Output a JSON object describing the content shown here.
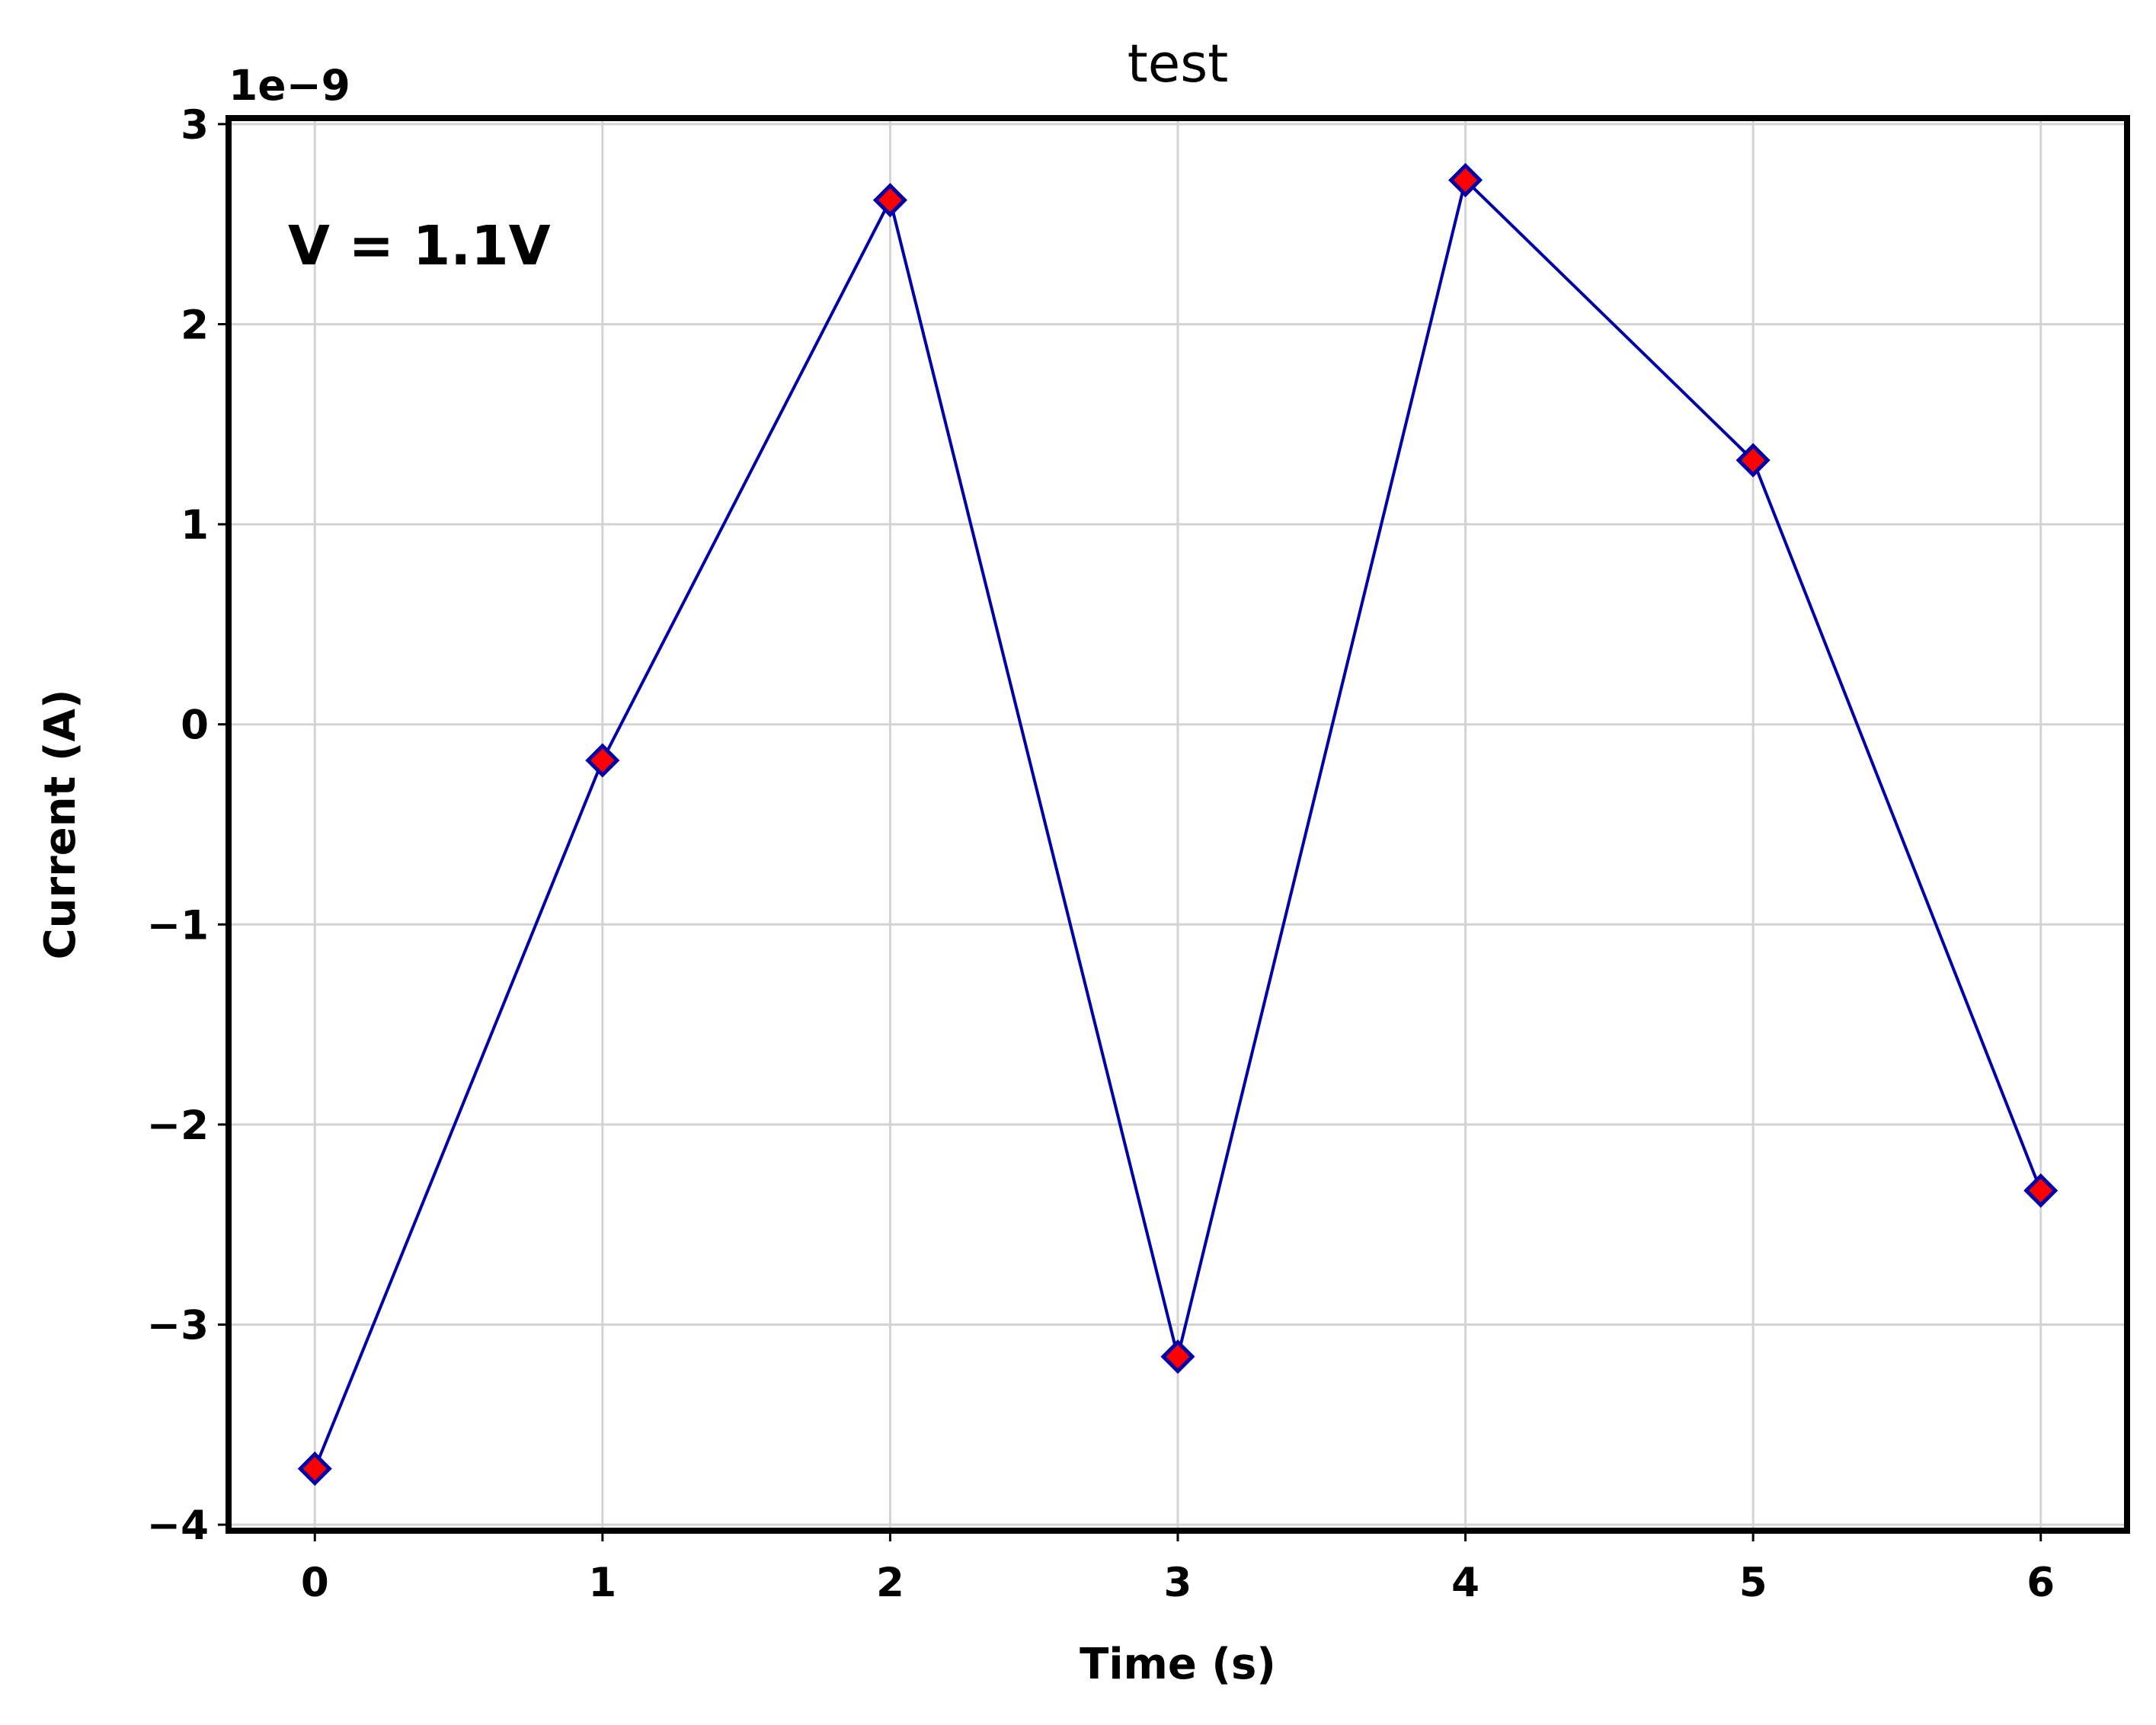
{
  "chart_data": {
    "type": "line",
    "title": "test",
    "xlabel": "Time (s)",
    "ylabel": "Current (A)",
    "y_offset_label": "1e−9",
    "annotation": "V = 1.1V",
    "xlim": [
      -0.3,
      6.3
    ],
    "ylim": [
      -4.03,
      3.03
    ],
    "x_ticks": [
      0,
      1,
      2,
      3,
      4,
      5,
      6
    ],
    "x_tick_labels": [
      "0",
      "1",
      "2",
      "3",
      "4",
      "5",
      "6"
    ],
    "y_ticks": [
      -4,
      -3,
      -2,
      -1,
      0,
      1,
      2,
      3
    ],
    "y_tick_labels": [
      "−4",
      "−3",
      "−2",
      "−1",
      "0",
      "1",
      "2",
      "3"
    ],
    "grid": true,
    "series": [
      {
        "x": [
          0,
          1,
          2,
          3,
          4,
          5,
          6
        ],
        "y": [
          -3.72,
          -0.18,
          2.62,
          -3.16,
          2.72,
          1.32,
          -2.33
        ],
        "line_color": "#0000aa",
        "marker": "diamond",
        "marker_fill": "#ff0000",
        "marker_edge": "#0000aa"
      }
    ]
  }
}
